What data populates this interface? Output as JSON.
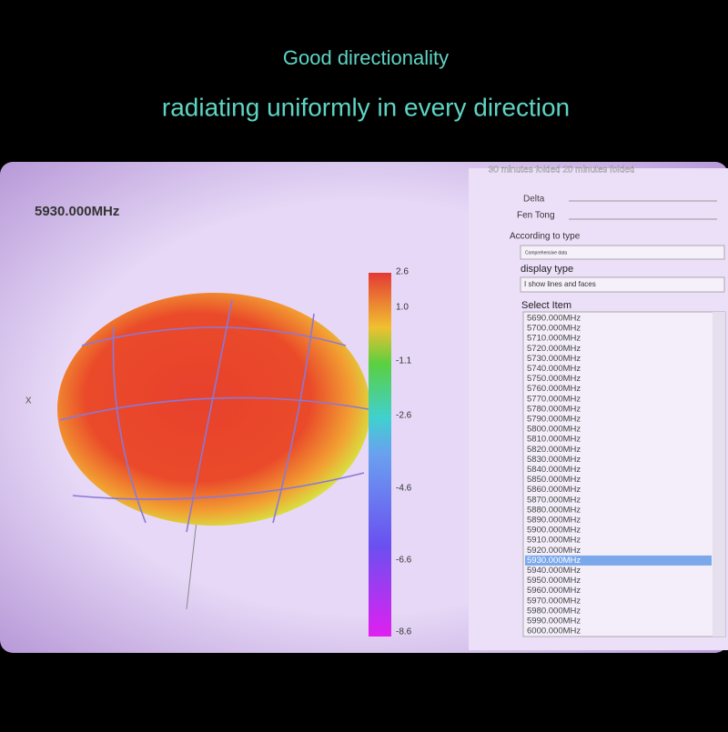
{
  "captions": {
    "line1": "Good directionality",
    "line2": "radiating uniformly in every direction"
  },
  "plot": {
    "frequency": "5930.000MHz",
    "axis_label": "x",
    "colorbar_ticks": [
      "2.6",
      "1.0",
      "-1.1",
      "-2.6",
      "-4.6",
      "-6.6",
      "-8.6"
    ]
  },
  "panel": {
    "header": "30 minutes folded 20 minutes folded",
    "delta_label": "Delta",
    "fen_tong_label": "Fen Tong",
    "according_label": "According to type",
    "according_value": "Comprehensive data",
    "display_label": "display type",
    "display_value": "I show lines and faces",
    "select_label": "Select Item",
    "items": [
      "5690.000MHz",
      "5700.000MHz",
      "5710.000MHz",
      "5720.000MHz",
      "5730.000MHz",
      "5740.000MHz",
      "5750.000MHz",
      "5760.000MHz",
      "5770.000MHz",
      "5780.000MHz",
      "5790.000MHz",
      "5800.000MHz",
      "5810.000MHz",
      "5820.000MHz",
      "5830.000MHz",
      "5840.000MHz",
      "5850.000MHz",
      "5860.000MHz",
      "5870.000MHz",
      "5880.000MHz",
      "5890.000MHz",
      "5900.000MHz",
      "5910.000MHz",
      "5920.000MHz",
      "5930.000MHz",
      "5940.000MHz",
      "5950.000MHz",
      "5960.000MHz",
      "5970.000MHz",
      "5980.000MHz",
      "5990.000MHz",
      "6000.000MHz"
    ],
    "selected_index": 24
  }
}
